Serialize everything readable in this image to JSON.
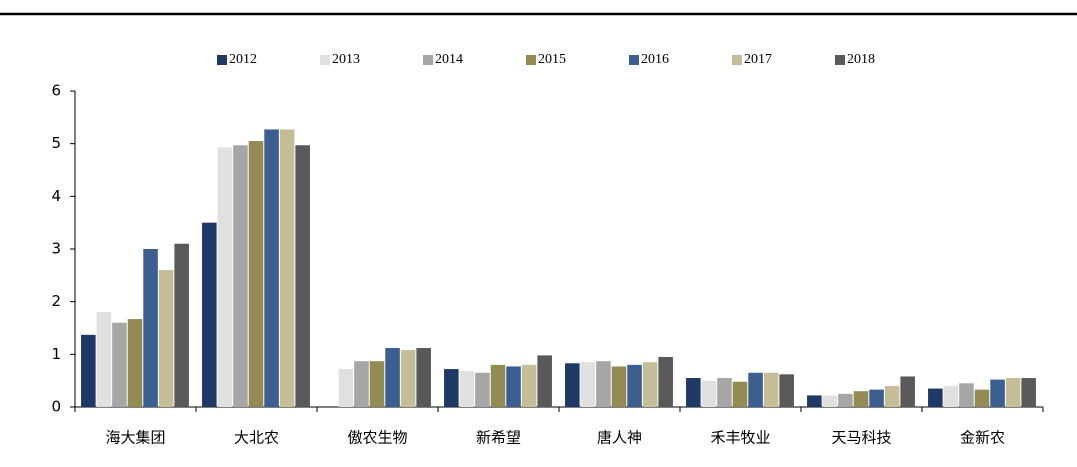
{
  "chart_data": {
    "type": "bar",
    "categories": [
      "海大集团",
      "大北农",
      "傲农生物",
      "新希望",
      "唐人神",
      "禾丰牧业",
      "天马科技",
      "金新农"
    ],
    "series": [
      {
        "name": "2012",
        "color": "#1f3864",
        "values": [
          1.37,
          3.5,
          null,
          0.72,
          0.83,
          0.55,
          0.22,
          0.35
        ]
      },
      {
        "name": "2013",
        "color": "#e0e0e0",
        "values": [
          1.8,
          4.93,
          0.72,
          0.68,
          0.85,
          0.5,
          0.22,
          0.4
        ]
      },
      {
        "name": "2014",
        "color": "#a6a6a6",
        "values": [
          1.6,
          4.97,
          0.87,
          0.65,
          0.87,
          0.55,
          0.25,
          0.45
        ]
      },
      {
        "name": "2015",
        "color": "#948a54",
        "values": [
          1.67,
          5.05,
          0.87,
          0.8,
          0.77,
          0.48,
          0.3,
          0.33
        ]
      },
      {
        "name": "2016",
        "color": "#3c5f8f",
        "values": [
          3.0,
          5.27,
          1.12,
          0.77,
          0.8,
          0.65,
          0.33,
          0.52
        ]
      },
      {
        "name": "2017",
        "color": "#c4bd97",
        "values": [
          2.6,
          5.27,
          1.08,
          0.8,
          0.85,
          0.65,
          0.4,
          0.55
        ]
      },
      {
        "name": "2018",
        "color": "#595959",
        "values": [
          3.1,
          4.97,
          1.12,
          0.98,
          0.95,
          0.62,
          0.58,
          0.55
        ]
      }
    ],
    "ylim": [
      0,
      6
    ],
    "yticks": [
      0,
      1,
      2,
      3,
      4,
      5,
      6
    ],
    "legend": "top"
  }
}
